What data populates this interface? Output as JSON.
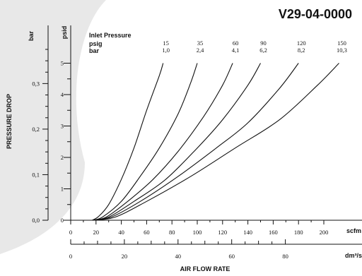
{
  "chart_data": {
    "type": "line",
    "title": "V29-04-0000",
    "xlabel": "AIR FLOW RATE",
    "ylabel": "PRESSURE DROP",
    "x_units": {
      "primary": "scfm",
      "secondary": "dm³/s"
    },
    "y_units": {
      "primary": "psid",
      "secondary": "bar"
    },
    "x_ticks_scfm": [
      "0",
      "20",
      "40",
      "60",
      "80",
      "100",
      "120",
      "140",
      "160",
      "180",
      "200"
    ],
    "x_ticks_dm3s": [
      "0",
      "20",
      "40",
      "60",
      "80"
    ],
    "y_ticks_psid": [
      "0",
      "1",
      "2",
      "3",
      "4",
      "5"
    ],
    "y_ticks_bar": [
      "0,0",
      "0,1",
      "0,2",
      "0,3"
    ],
    "xlim": [
      0,
      210
    ],
    "ylim": [
      0,
      5.4
    ],
    "grid": false,
    "legend": {
      "title": "Inlet Pressure",
      "row_labels": [
        "psig",
        "bar"
      ]
    },
    "series": [
      {
        "name": "15 psig / 1,0 bar",
        "psig": "15",
        "bar": "1,0",
        "x": [
          17,
          22,
          30,
          40,
          50,
          60,
          70,
          73
        ],
        "y": [
          0,
          0.12,
          0.5,
          1.3,
          2.3,
          3.5,
          4.6,
          5.0
        ]
      },
      {
        "name": "35 psig / 2,4 bar",
        "psig": "35",
        "bar": "2,4",
        "x": [
          17,
          25,
          40,
          55,
          70,
          85,
          95,
          100
        ],
        "y": [
          0,
          0.1,
          0.6,
          1.4,
          2.3,
          3.4,
          4.4,
          5.0
        ]
      },
      {
        "name": "60 psig / 4,1 bar",
        "psig": "60",
        "bar": "4,1",
        "x": [
          17,
          28,
          45,
          65,
          85,
          105,
          120,
          128
        ],
        "y": [
          0,
          0.1,
          0.6,
          1.3,
          2.2,
          3.3,
          4.3,
          5.0
        ]
      },
      {
        "name": "90 psig / 6,2 bar",
        "psig": "90",
        "bar": "6,2",
        "x": [
          17,
          30,
          50,
          75,
          100,
          120,
          140,
          150
        ],
        "y": [
          0,
          0.1,
          0.6,
          1.3,
          2.3,
          3.2,
          4.3,
          5.0
        ]
      },
      {
        "name": "120 psig / 8,2 bar",
        "psig": "120",
        "bar": "8,2",
        "x": [
          17,
          32,
          55,
          85,
          115,
          140,
          165,
          180
        ],
        "y": [
          0,
          0.1,
          0.6,
          1.4,
          2.3,
          3.1,
          4.2,
          5.0
        ]
      },
      {
        "name": "150 psig / 10,3 bar",
        "psig": "150",
        "bar": "10,3",
        "x": [
          17,
          35,
          60,
          95,
          130,
          165,
          195,
          212
        ],
        "y": [
          0,
          0.1,
          0.6,
          1.4,
          2.3,
          3.2,
          4.3,
          5.0
        ]
      }
    ]
  }
}
